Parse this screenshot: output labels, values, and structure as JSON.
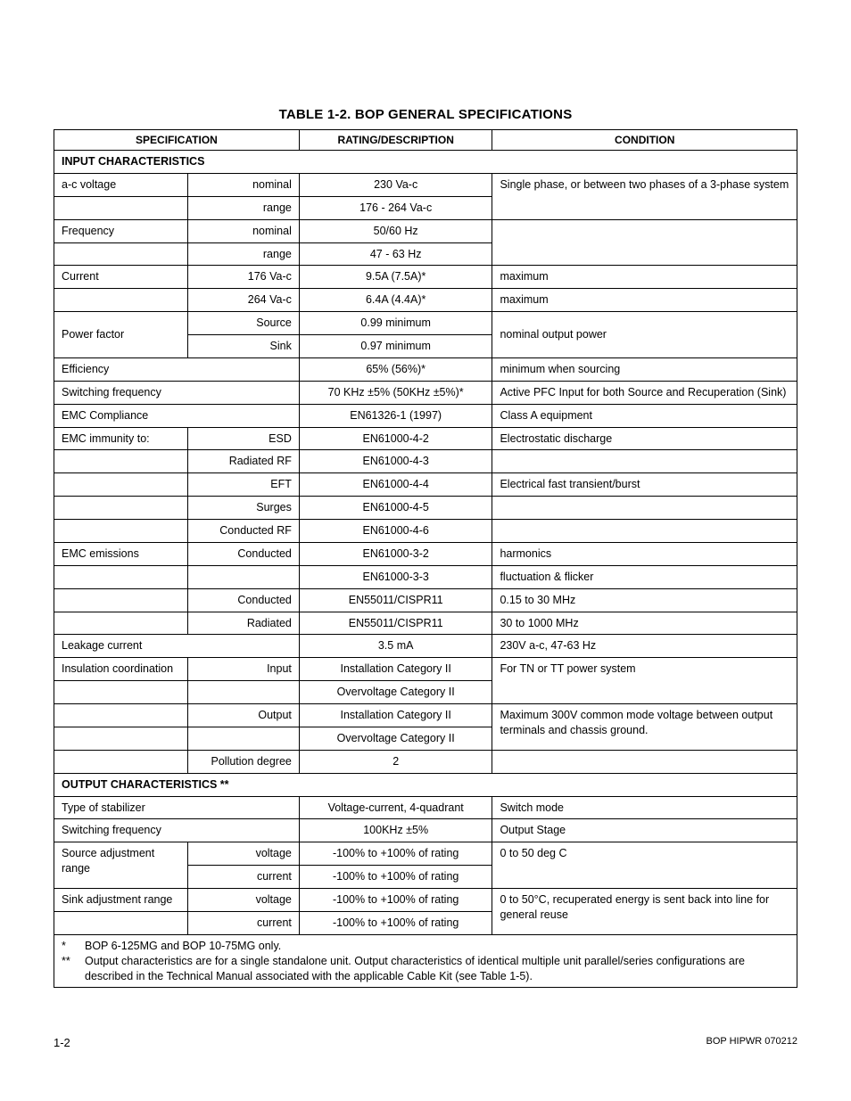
{
  "title": "TABLE 1-2.  BOP GENERAL SPECIFICATIONS",
  "headers": {
    "spec": "SPECIFICATION",
    "rating": "RATING/DESCRIPTION",
    "cond": "CONDITION"
  },
  "sections": {
    "input": "INPUT CHARACTERISTICS",
    "output": "OUTPUT CHARACTERISTICS **"
  },
  "rows": {
    "ac_voltage": {
      "label": "a-c voltage",
      "nominal_sub": "nominal",
      "nominal_val": "230 Va-c",
      "range_sub": "range",
      "range_val": "176 - 264 Va-c",
      "cond": "Single phase, or between two phases of a 3-phase system"
    },
    "frequency": {
      "label": "Frequency",
      "nominal_sub": "nominal",
      "nominal_val": "50/60 Hz",
      "range_sub": "range",
      "range_val": "47 - 63 Hz"
    },
    "current": {
      "label": "Current",
      "r1_sub": "176 Va-c",
      "r1_val": "9.5A (7.5A)*",
      "r1_cond": "maximum",
      "r2_sub": "264 Va-c",
      "r2_val": "6.4A (4.4A)*",
      "r2_cond": "maximum"
    },
    "power_factor": {
      "label": "Power factor",
      "src_sub": "Source",
      "src_val": "0.99 minimum",
      "sink_sub": "Sink",
      "sink_val": "0.97 minimum",
      "cond": "nominal output power"
    },
    "efficiency": {
      "label": "Efficiency",
      "val": "65% (56%)*",
      "cond": "minimum when sourcing"
    },
    "sw_freq": {
      "label": "Switching frequency",
      "val": "70 KHz ±5% (50KHz ±5%)*",
      "cond": "Active PFC Input for both Source and Recuperation (Sink)"
    },
    "emc_comp": {
      "label": "EMC Compliance",
      "val": "EN61326-1 (1997)",
      "cond": "Class A equipment"
    },
    "emc_imm": {
      "label": "EMC immunity to:",
      "esd_sub": "ESD",
      "esd_val": "EN61000-4-2",
      "esd_cond": "Electrostatic discharge",
      "rrf_sub": "Radiated RF",
      "rrf_val": "EN61000-4-3",
      "eft_sub": "EFT",
      "eft_val": "EN61000-4-4",
      "eft_cond": "Electrical fast transient/burst",
      "surge_sub": "Surges",
      "surge_val": "EN61000-4-5",
      "crf_sub": "Conducted RF",
      "crf_val": "EN61000-4-6"
    },
    "emc_em": {
      "label": "EMC emissions",
      "c1_sub": "Conducted",
      "c1_val": "EN61000-3-2",
      "c1_cond": "harmonics",
      "c2_val": "EN61000-3-3",
      "c2_cond": "fluctuation & flicker",
      "c3_sub": "Conducted",
      "c3_val": "EN55011/CISPR11",
      "c3_cond": "0.15 to 30 MHz",
      "c4_sub": "Radiated",
      "c4_val": "EN55011/CISPR11",
      "c4_cond": "30 to 1000 MHz"
    },
    "leakage": {
      "label": "Leakage current",
      "val": "3.5 mA",
      "cond": "230V a-c, 47-63 Hz"
    },
    "insul": {
      "label": "Insulation coordination",
      "in_sub": "Input",
      "in_v1": "Installation Category II",
      "in_v2": "Overvoltage Category II",
      "in_cond": "For TN or TT power system",
      "out_sub": "Output",
      "out_v1": "Installation Category II",
      "out_v2": "Overvoltage Category II",
      "out_cond": "Maximum 300V common mode voltage between output terminals and chassis ground.",
      "poll_sub": "Pollution degree",
      "poll_val": "2"
    },
    "stabilizer": {
      "label": "Type of stabilizer",
      "val": "Voltage-current, 4-quadrant",
      "cond": "Switch mode"
    },
    "out_sw": {
      "label": "Switching frequency",
      "val": "100KHz ±5%",
      "cond": "Output Stage"
    },
    "src_adj": {
      "label": "Source adjustment range",
      "v_sub": "voltage",
      "v_val": "-100% to +100% of rating",
      "cond": "0 to 50 deg C",
      "c_sub": "current",
      "c_val": "-100% to +100% of rating"
    },
    "sink_adj": {
      "label": "Sink adjustment range",
      "v_sub": "voltage",
      "v_val": "-100% to +100% of rating",
      "c_sub": "current",
      "c_val": "-100% to +100% of rating",
      "cond": "0 to 50°C, recuperated energy is sent back into line for general reuse"
    }
  },
  "footnotes": {
    "f1_mark": "*",
    "f1": "BOP 6-125MG and BOP 10-75MG only.",
    "f2_mark": "**",
    "f2": "Output characteristics are for a single standalone unit. Output characteristics of identical multiple unit parallel/series configurations are described in the Technical Manual associated with the applicable Cable Kit (see Table 1-5)."
  },
  "footer": {
    "page": "1-2",
    "doc": "BOP HIPWR 070212"
  }
}
